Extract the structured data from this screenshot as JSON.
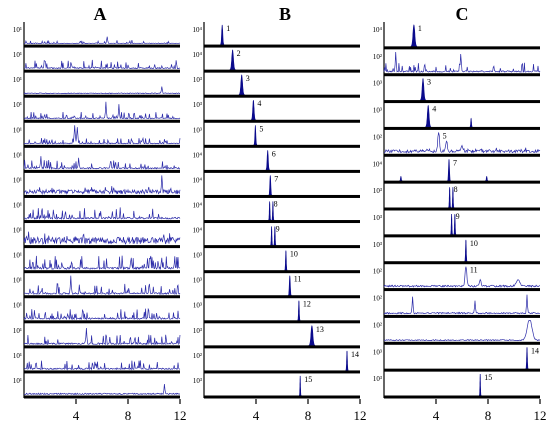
{
  "chart_data": [
    {
      "type": "line",
      "title": "A",
      "x_ticks": [
        4,
        8,
        12
      ],
      "xlim": [
        0,
        12
      ],
      "rows": [
        {
          "ylabel": "10¹",
          "noise": "spiky",
          "amp": 0.18,
          "peaks": [
            {
              "x": 6.4,
              "h": 0.35,
              "w": 0.05
            }
          ]
        },
        {
          "ylabel": "10¹",
          "noise": "spiky",
          "amp": 0.45,
          "peaks": []
        },
        {
          "ylabel": "10¹",
          "noise": "flat",
          "amp": 0.12,
          "peaks": [
            {
              "x": 10.6,
              "h": 0.35,
              "w": 0.05
            }
          ]
        },
        {
          "ylabel": "10¹",
          "noise": "spiky",
          "amp": 0.35,
          "peaks": [
            {
              "x": 6.3,
              "h": 0.85,
              "w": 0.05
            },
            {
              "x": 7.3,
              "h": 0.7,
              "w": 0.05
            }
          ]
        },
        {
          "ylabel": "10¹",
          "noise": "spiky",
          "amp": 0.3,
          "peaks": [
            {
              "x": 3.9,
              "h": 0.9,
              "w": 0.06
            },
            {
              "x": 4.1,
              "h": 0.7,
              "w": 0.06
            }
          ]
        },
        {
          "ylabel": "10¹",
          "noise": "spiky",
          "amp": 0.5,
          "peaks": [
            {
              "x": 1.3,
              "h": 0.6,
              "w": 0.05
            },
            {
              "x": 4.2,
              "h": 0.5,
              "w": 0.05
            }
          ]
        },
        {
          "ylabel": "10¹",
          "noise": "dense",
          "amp": 0.4,
          "peaks": [
            {
              "x": 10.6,
              "h": 0.8,
              "w": 0.05
            }
          ]
        },
        {
          "ylabel": "10¹",
          "noise": "spiky",
          "amp": 0.6,
          "peaks": []
        },
        {
          "ylabel": "10¹",
          "noise": "dense",
          "amp": 0.65,
          "peaks": []
        },
        {
          "ylabel": "10¹",
          "noise": "spiky",
          "amp": 0.7,
          "peaks": []
        },
        {
          "ylabel": "10¹",
          "noise": "spiky",
          "amp": 0.55,
          "peaks": [
            {
              "x": 3.6,
              "h": 0.9,
              "w": 0.05
            }
          ]
        },
        {
          "ylabel": "10¹",
          "noise": "spiky",
          "amp": 0.55,
          "peaks": []
        },
        {
          "ylabel": "10¹",
          "noise": "spiky",
          "amp": 0.5,
          "peaks": [
            {
              "x": 4.8,
              "h": 0.8,
              "w": 0.05
            }
          ]
        },
        {
          "ylabel": "10¹",
          "noise": "spiky",
          "amp": 0.5,
          "peaks": []
        },
        {
          "ylabel": "10¹",
          "noise": "flat",
          "amp": 0.2,
          "peaks": [
            {
              "x": 10.8,
              "h": 0.5,
              "w": 0.05
            }
          ]
        }
      ]
    },
    {
      "type": "line",
      "title": "B",
      "x_ticks": [
        4,
        8,
        12
      ],
      "xlim": [
        0,
        12
      ],
      "rows": [
        {
          "ylabel": "10⁴",
          "peak_label": "1",
          "noise": "none",
          "amp": 0,
          "peaks": [
            {
              "x": 1.4,
              "h": 1.0,
              "w": 0.06
            }
          ]
        },
        {
          "ylabel": "10⁴",
          "peak_label": "2",
          "noise": "none",
          "amp": 0,
          "peaks": [
            {
              "x": 2.2,
              "h": 1.0,
              "w": 0.09
            }
          ]
        },
        {
          "ylabel": "10³",
          "peak_label": "3",
          "noise": "none",
          "amp": 0,
          "peaks": [
            {
              "x": 2.9,
              "h": 1.0,
              "w": 0.09
            }
          ]
        },
        {
          "ylabel": "10³",
          "peak_label": "4",
          "noise": "none",
          "amp": 0,
          "peaks": [
            {
              "x": 3.8,
              "h": 1.0,
              "w": 0.07
            }
          ]
        },
        {
          "ylabel": "10³",
          "peak_label": "5",
          "noise": "none",
          "amp": 0,
          "peaks": [
            {
              "x": 3.95,
              "h": 1.0,
              "w": 0.05
            }
          ]
        },
        {
          "ylabel": "10⁴",
          "peak_label": "6",
          "noise": "none",
          "amp": 0,
          "peaks": [
            {
              "x": 4.9,
              "h": 1.0,
              "w": 0.06
            }
          ]
        },
        {
          "ylabel": "10⁴",
          "peak_label": "7",
          "noise": "none",
          "amp": 0,
          "peaks": [
            {
              "x": 5.1,
              "h": 1.0,
              "w": 0.05
            }
          ]
        },
        {
          "ylabel": "10⁴",
          "peak_label": "8",
          "noise": "none",
          "amp": 0,
          "peaks": [
            {
              "x": 5.05,
              "h": 0.95,
              "w": 0.035
            },
            {
              "x": 5.3,
              "h": 0.95,
              "w": 0.035
            }
          ]
        },
        {
          "ylabel": "10⁴",
          "peak_label": "9",
          "noise": "none",
          "amp": 0,
          "peaks": [
            {
              "x": 5.2,
              "h": 0.95,
              "w": 0.035
            },
            {
              "x": 5.45,
              "h": 0.95,
              "w": 0.035
            }
          ]
        },
        {
          "ylabel": "10³",
          "peak_label": "10",
          "noise": "none",
          "amp": 0,
          "peaks": [
            {
              "x": 6.3,
              "h": 1.0,
              "w": 0.04
            }
          ]
        },
        {
          "ylabel": "10³",
          "peak_label": "11",
          "noise": "none",
          "amp": 0,
          "peaks": [
            {
              "x": 6.6,
              "h": 1.0,
              "w": 0.05
            }
          ]
        },
        {
          "ylabel": "10³",
          "peak_label": "12",
          "noise": "none",
          "amp": 0,
          "peaks": [
            {
              "x": 7.3,
              "h": 1.0,
              "w": 0.04
            }
          ]
        },
        {
          "ylabel": "10³",
          "peak_label": "13",
          "noise": "none",
          "amp": 0,
          "peaks": [
            {
              "x": 8.3,
              "h": 1.0,
              "w": 0.1
            }
          ]
        },
        {
          "ylabel": "10²",
          "peak_label": "14",
          "noise": "none",
          "amp": 0,
          "peaks": [
            {
              "x": 11.0,
              "h": 1.0,
              "w": 0.04
            }
          ]
        },
        {
          "ylabel": "10³",
          "peak_label": "15",
          "noise": "none",
          "amp": 0,
          "peaks": [
            {
              "x": 7.4,
              "h": 1.0,
              "w": 0.03
            }
          ]
        }
      ]
    },
    {
      "type": "line",
      "title": "C",
      "x_ticks": [
        4,
        8,
        12
      ],
      "xlim": [
        0,
        12
      ],
      "rows": [
        {
          "ylabel": "10⁴",
          "peak_label": "1",
          "noise": "none",
          "amp": 0,
          "peaks": [
            {
              "x": 2.3,
              "h": 1.0,
              "w": 0.1
            }
          ]
        },
        {
          "ylabel": "10²",
          "noise": "spiky",
          "amp": 0.45,
          "peaks": [
            {
              "x": 0.9,
              "h": 0.9,
              "w": 0.05
            },
            {
              "x": 5.9,
              "h": 0.8,
              "w": 0.05
            }
          ]
        },
        {
          "ylabel": "10³",
          "peak_label": "3",
          "noise": "none",
          "amp": 0,
          "peaks": [
            {
              "x": 3.0,
              "h": 1.0,
              "w": 0.09
            }
          ]
        },
        {
          "ylabel": "10³",
          "peak_label": "4",
          "noise": "none",
          "amp": 0,
          "peaks": [
            {
              "x": 3.4,
              "h": 1.0,
              "w": 0.09
            },
            {
              "x": 6.7,
              "h": 0.4,
              "w": 0.04
            }
          ]
        },
        {
          "ylabel": "10²",
          "peak_label": "5",
          "noise": "dense",
          "amp": 0.25,
          "peaks": [
            {
              "x": 4.2,
              "h": 1.0,
              "w": 0.08
            },
            {
              "x": 4.8,
              "h": 0.5,
              "w": 0.1
            },
            {
              "x": 6.0,
              "h": 0.3,
              "w": 0.1
            }
          ]
        },
        {
          "ylabel": "10⁴",
          "peak_label": "7",
          "noise": "none",
          "amp": 0,
          "peaks": [
            {
              "x": 5.0,
              "h": 1.0,
              "w": 0.05
            },
            {
              "x": 1.3,
              "h": 0.2,
              "w": 0.04
            },
            {
              "x": 7.9,
              "h": 0.2,
              "w": 0.04
            }
          ]
        },
        {
          "ylabel": "10³",
          "peak_label": "8",
          "noise": "none",
          "amp": 0,
          "peaks": [
            {
              "x": 5.05,
              "h": 0.95,
              "w": 0.035
            },
            {
              "x": 5.3,
              "h": 0.95,
              "w": 0.035
            }
          ]
        },
        {
          "ylabel": "10³",
          "peak_label": "9",
          "noise": "none",
          "amp": 0,
          "peaks": [
            {
              "x": 5.2,
              "h": 0.95,
              "w": 0.035
            },
            {
              "x": 5.45,
              "h": 0.95,
              "w": 0.035
            }
          ]
        },
        {
          "ylabel": "10³",
          "peak_label": "10",
          "noise": "none",
          "amp": 0,
          "peaks": [
            {
              "x": 6.3,
              "h": 1.0,
              "w": 0.04
            }
          ]
        },
        {
          "ylabel": "10²",
          "peak_label": "11",
          "noise": "flat",
          "amp": 0.25,
          "peaks": [
            {
              "x": 6.3,
              "h": 1.0,
              "w": 0.09
            },
            {
              "x": 7.4,
              "h": 0.3,
              "w": 0.08
            },
            {
              "x": 10.3,
              "h": 0.3,
              "w": 0.2
            }
          ]
        },
        {
          "ylabel": "10²",
          "noise": "flat",
          "amp": 0.2,
          "peaks": [
            {
              "x": 2.2,
              "h": 0.8,
              "w": 0.05
            },
            {
              "x": 7.0,
              "h": 0.6,
              "w": 0.05
            },
            {
              "x": 11.0,
              "h": 0.9,
              "w": 0.05
            }
          ]
        },
        {
          "ylabel": "10²",
          "noise": "flat",
          "amp": 0.15,
          "peaks": [
            {
              "x": 11.2,
              "h": 1.0,
              "w": 0.25
            }
          ]
        },
        {
          "ylabel": "10³",
          "peak_label": "14",
          "noise": "none",
          "amp": 0,
          "peaks": [
            {
              "x": 11.0,
              "h": 1.0,
              "w": 0.04
            }
          ]
        },
        {
          "ylabel": "10³",
          "peak_label": "15",
          "noise": "none",
          "amp": 0,
          "peaks": [
            {
              "x": 7.4,
              "h": 1.0,
              "w": 0.03
            }
          ]
        }
      ]
    }
  ],
  "colors": {
    "trace": "#2a2aa8",
    "fill": "#0a0a8c",
    "axis": "#000000"
  }
}
